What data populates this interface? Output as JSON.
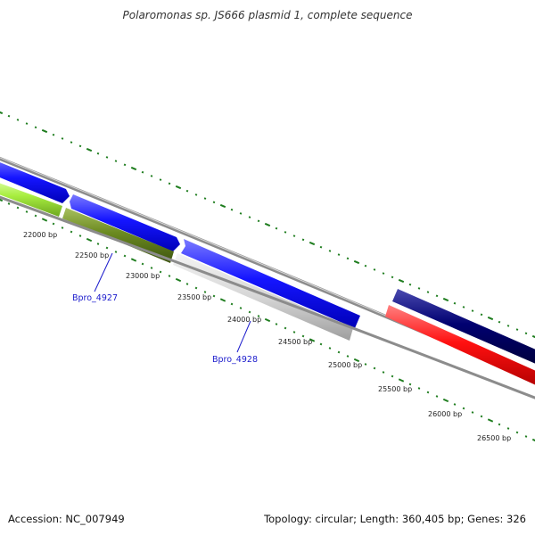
{
  "title": "Polaromonas sp. JS666 plasmid 1, complete sequence",
  "footer": {
    "accession": "Accession: NC_007949",
    "summary": "Topology: circular; Length: 360,405 bp; Genes: 326"
  },
  "ruler": {
    "unit": "bp",
    "labels": [
      "22000 bp",
      "22500 bp",
      "23000 bp",
      "23500 bp",
      "24000 bp",
      "24500 bp",
      "25000 bp",
      "25500 bp",
      "26000 bp",
      "26500 bp"
    ]
  },
  "gene_labels": [
    "Bpro_4927",
    "Bpro_4928"
  ],
  "colors": {
    "forward_gene": "#1010ff",
    "forward_gene_dark": "#000070",
    "reverse_gene_green": "#6b8a20",
    "reverse_gene_lime": "#a8ee40",
    "reverse_gene_gray": "#cfcfcf",
    "reverse_gene_red": "#ff1010",
    "backbone": "#8c8c8c",
    "ticks": "#1e7d1e",
    "label_link": "#1a1acc"
  }
}
